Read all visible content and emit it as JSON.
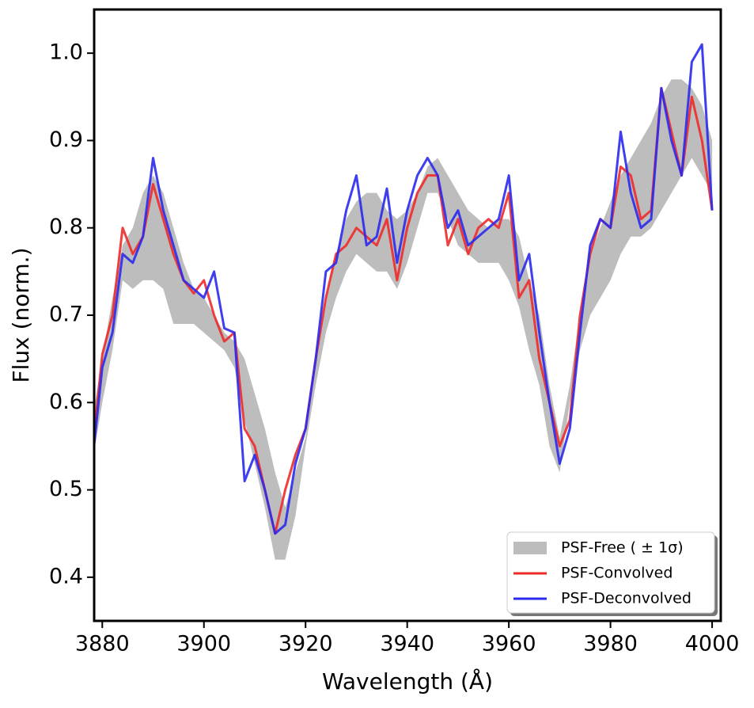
{
  "chart_data": {
    "type": "line",
    "xlabel": "Wavelength (Å)",
    "ylabel": "Flux (norm.)",
    "x": [
      3878,
      3880,
      3882,
      3884,
      3886,
      3888,
      3890,
      3892,
      3894,
      3896,
      3898,
      3900,
      3902,
      3904,
      3906,
      3908,
      3910,
      3912,
      3914,
      3916,
      3918,
      3920,
      3922,
      3924,
      3926,
      3928,
      3930,
      3932,
      3934,
      3936,
      3938,
      3940,
      3942,
      3944,
      3946,
      3948,
      3950,
      3952,
      3954,
      3956,
      3958,
      3960,
      3962,
      3964,
      3966,
      3968,
      3970,
      3972,
      3974,
      3976,
      3978,
      3980,
      3982,
      3984,
      3986,
      3988,
      3990,
      3992,
      3994,
      3996,
      3998,
      4000
    ],
    "band": {
      "name": "PSF-Free ( ± 1σ)",
      "color": "#bdbdbd",
      "lower": [
        0.53,
        0.6,
        0.66,
        0.74,
        0.73,
        0.74,
        0.74,
        0.73,
        0.69,
        0.69,
        0.69,
        0.68,
        0.67,
        0.66,
        0.64,
        0.58,
        0.53,
        0.48,
        0.42,
        0.42,
        0.47,
        0.55,
        0.62,
        0.68,
        0.72,
        0.75,
        0.77,
        0.76,
        0.75,
        0.75,
        0.73,
        0.76,
        0.8,
        0.84,
        0.84,
        0.81,
        0.78,
        0.77,
        0.76,
        0.76,
        0.76,
        0.74,
        0.71,
        0.66,
        0.62,
        0.55,
        0.52,
        0.6,
        0.66,
        0.7,
        0.72,
        0.74,
        0.77,
        0.79,
        0.79,
        0.8,
        0.82,
        0.84,
        0.86,
        0.88,
        0.86,
        0.84
      ],
      "upper": [
        0.58,
        0.65,
        0.72,
        0.78,
        0.8,
        0.84,
        0.86,
        0.84,
        0.8,
        0.76,
        0.73,
        0.72,
        0.7,
        0.68,
        0.67,
        0.65,
        0.61,
        0.57,
        0.52,
        0.48,
        0.52,
        0.56,
        0.65,
        0.72,
        0.77,
        0.81,
        0.83,
        0.84,
        0.84,
        0.82,
        0.81,
        0.82,
        0.84,
        0.87,
        0.88,
        0.86,
        0.84,
        0.82,
        0.81,
        0.8,
        0.81,
        0.81,
        0.79,
        0.74,
        0.7,
        0.62,
        0.56,
        0.62,
        0.7,
        0.77,
        0.8,
        0.83,
        0.86,
        0.88,
        0.9,
        0.92,
        0.95,
        0.97,
        0.97,
        0.96,
        0.94,
        0.9
      ]
    },
    "series": [
      {
        "name": "PSF-Convolved",
        "color": "#ee2a2a",
        "values": [
          0.54,
          0.655,
          0.7,
          0.8,
          0.77,
          0.79,
          0.85,
          0.81,
          0.77,
          0.74,
          0.725,
          0.74,
          0.7,
          0.67,
          0.68,
          0.57,
          0.55,
          0.5,
          0.45,
          0.5,
          0.54,
          0.57,
          0.65,
          0.72,
          0.77,
          0.78,
          0.8,
          0.79,
          0.78,
          0.81,
          0.74,
          0.8,
          0.84,
          0.86,
          0.86,
          0.78,
          0.81,
          0.77,
          0.8,
          0.81,
          0.8,
          0.84,
          0.72,
          0.74,
          0.65,
          0.6,
          0.55,
          0.58,
          0.7,
          0.77,
          0.81,
          0.8,
          0.87,
          0.86,
          0.81,
          0.82,
          0.96,
          0.91,
          0.86,
          0.95,
          0.9,
          0.82
        ]
      },
      {
        "name": "PSF-Deconvolved",
        "color": "#2a2aee",
        "values": [
          0.53,
          0.64,
          0.68,
          0.77,
          0.76,
          0.79,
          0.88,
          0.82,
          0.78,
          0.74,
          0.73,
          0.72,
          0.75,
          0.685,
          0.68,
          0.51,
          0.54,
          0.5,
          0.45,
          0.46,
          0.53,
          0.57,
          0.65,
          0.75,
          0.76,
          0.82,
          0.86,
          0.78,
          0.79,
          0.845,
          0.76,
          0.82,
          0.86,
          0.88,
          0.86,
          0.8,
          0.82,
          0.78,
          0.79,
          0.8,
          0.81,
          0.86,
          0.74,
          0.77,
          0.68,
          0.6,
          0.53,
          0.57,
          0.68,
          0.78,
          0.81,
          0.8,
          0.91,
          0.84,
          0.8,
          0.81,
          0.96,
          0.9,
          0.86,
          0.99,
          1.01,
          0.82
        ]
      }
    ],
    "xlim": [
      3878.4,
      4001.7
    ],
    "ylim": [
      0.35,
      1.05
    ],
    "xticks": [
      3880,
      3900,
      3920,
      3940,
      3960,
      3980,
      4000
    ],
    "yticks": [
      0.4,
      0.5,
      0.6,
      0.7,
      0.8,
      0.9,
      {
        "value": 1,
        "label": "1.0"
      }
    ],
    "legend": "lower right"
  }
}
